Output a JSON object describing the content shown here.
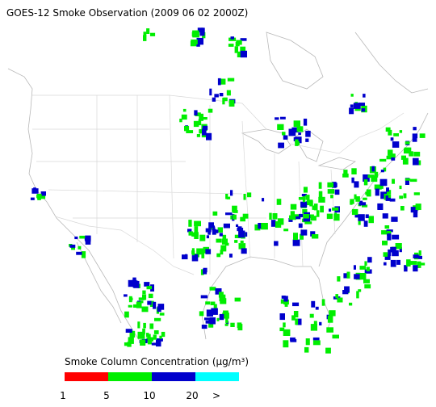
{
  "title": "GOES-12 Smoke Observation (2009 06 02  2000Z)",
  "legend": {
    "title": "Smoke Column Concentration (μg/m³)",
    "colors": [
      "#ff0000",
      "#00ee00",
      "#0000cc",
      "#00ffff"
    ],
    "labels": [
      "1",
      "5",
      "10",
      "20",
      ">"
    ]
  }
}
